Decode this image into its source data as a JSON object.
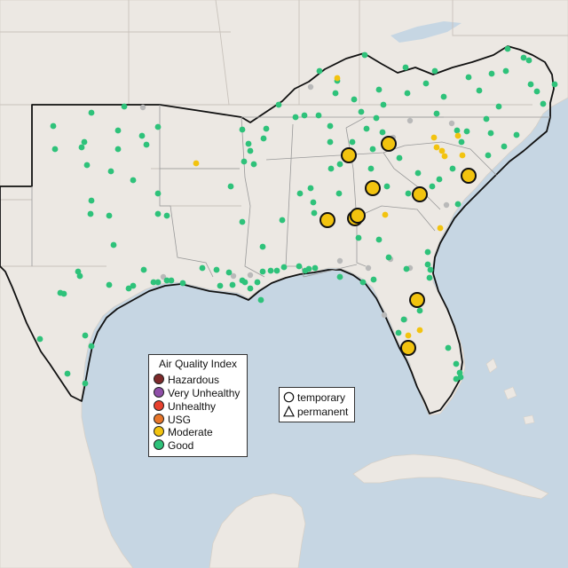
{
  "legend": {
    "title": "Air Quality Index",
    "categories": [
      {
        "label": "Hazardous",
        "color": "#7e2a2a"
      },
      {
        "label": "Very Unhealthy",
        "color": "#8f4fa8"
      },
      {
        "label": "Unhealthy",
        "color": "#e8412e"
      },
      {
        "label": "USG",
        "color": "#e8762a"
      },
      {
        "label": "Moderate",
        "color": "#f2c30f"
      },
      {
        "label": "Good",
        "color": "#2ec27a"
      }
    ]
  },
  "type_legend": {
    "temporary": "temporary",
    "permanent": "permanent"
  },
  "colors": {
    "water": "#c6d6e3",
    "land": "#ece8e3",
    "no_data": "#b9b9b9"
  }
}
